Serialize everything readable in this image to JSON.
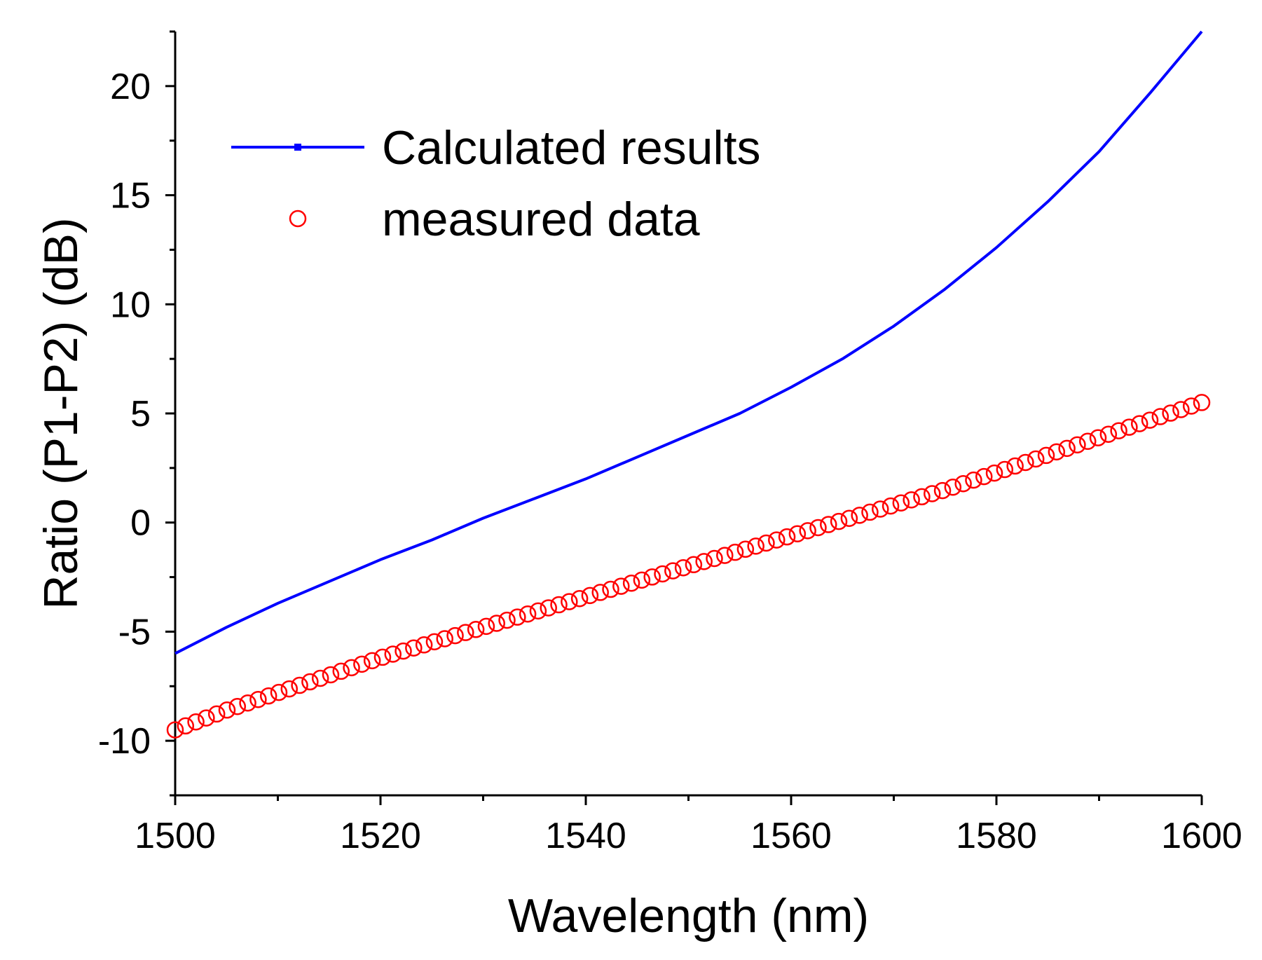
{
  "chart_data": {
    "type": "scatter",
    "title": "",
    "xlabel": "Wavelength (nm)",
    "ylabel": "Ratio (P1-P2) (dB)",
    "xlim": [
      1500,
      1600
    ],
    "ylim": [
      -12.5,
      22.5
    ],
    "xticks": [
      1500,
      1520,
      1540,
      1560,
      1580,
      1600
    ],
    "xtick_labels": [
      "1500",
      "1520",
      "1540",
      "1560",
      "1580",
      "1600"
    ],
    "yticks": [
      -10,
      -5,
      0,
      5,
      10,
      15,
      20
    ],
    "ytick_labels": [
      "-10",
      "-5",
      "0",
      "5",
      "10",
      "15",
      "20"
    ],
    "grid": false,
    "legend_position": "top-left",
    "series": [
      {
        "name": "Calculated results",
        "kind": "line",
        "color": "#0000ff",
        "x": [
          1500,
          1505,
          1510,
          1515,
          1520,
          1525,
          1530,
          1535,
          1540,
          1545,
          1550,
          1555,
          1560,
          1565,
          1570,
          1575,
          1580,
          1585,
          1590,
          1595,
          1600
        ],
        "y": [
          -6.0,
          -4.8,
          -3.7,
          -2.7,
          -1.7,
          -0.8,
          0.2,
          1.1,
          2.0,
          3.0,
          4.0,
          5.0,
          6.2,
          7.5,
          9.0,
          10.7,
          12.6,
          14.7,
          17.0,
          19.7,
          22.5
        ]
      },
      {
        "name": "measured data",
        "kind": "scatter",
        "color": "#ff0000",
        "x": [
          1500,
          1505,
          1510,
          1515,
          1520,
          1525,
          1530,
          1535,
          1540,
          1545,
          1550,
          1555,
          1560,
          1565,
          1570,
          1575,
          1580,
          1585,
          1590,
          1595,
          1600
        ],
        "y": [
          -9.5,
          -8.6,
          -7.8,
          -7.0,
          -6.2,
          -5.5,
          -4.8,
          -4.1,
          -3.4,
          -2.7,
          -2.0,
          -1.3,
          -0.6,
          0.1,
          0.8,
          1.5,
          2.3,
          3.1,
          3.9,
          4.7,
          5.5
        ],
        "n_points": 100
      }
    ]
  }
}
